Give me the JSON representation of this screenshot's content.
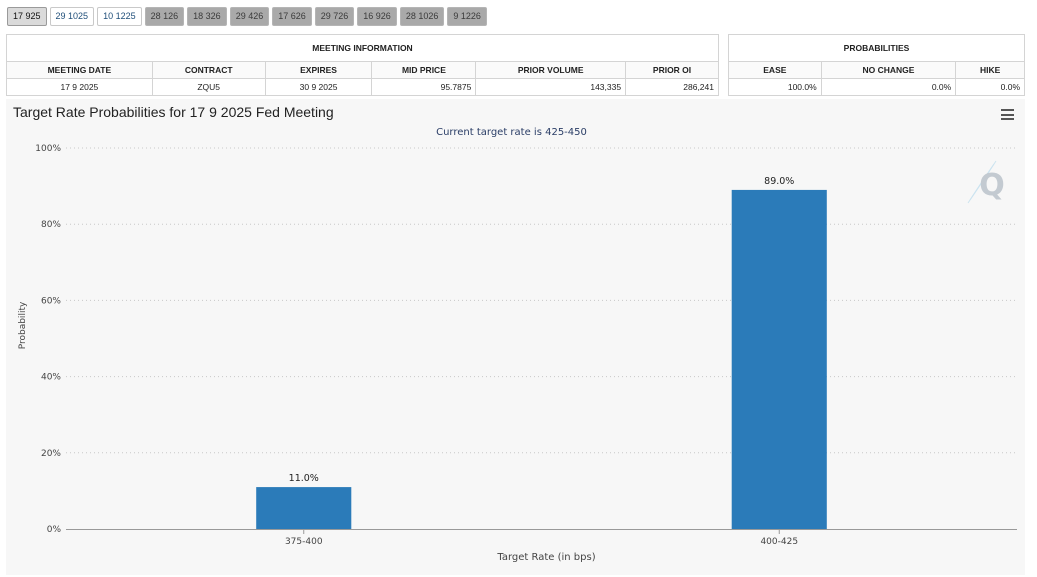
{
  "tabs": [
    {
      "label": "17 925",
      "state": "active"
    },
    {
      "label": "29 1025",
      "state": "light"
    },
    {
      "label": "10 1225",
      "state": "light"
    },
    {
      "label": "28 126",
      "state": "dark"
    },
    {
      "label": "18 326",
      "state": "dark"
    },
    {
      "label": "29 426",
      "state": "dark"
    },
    {
      "label": "17 626",
      "state": "dark"
    },
    {
      "label": "29 726",
      "state": "dark"
    },
    {
      "label": "16 926",
      "state": "dark"
    },
    {
      "label": "28 1026",
      "state": "dark"
    },
    {
      "label": "9 1226",
      "state": "dark"
    }
  ],
  "meeting_info": {
    "heading": "MEETING INFORMATION",
    "columns": [
      "MEETING DATE",
      "CONTRACT",
      "EXPIRES",
      "MID PRICE",
      "PRIOR VOLUME",
      "PRIOR OI"
    ],
    "row": [
      "17 9 2025",
      "ZQU5",
      "30 9 2025",
      "95.7875",
      "143,335",
      "286,241"
    ]
  },
  "probabilities": {
    "heading": "PROBABILITIES",
    "columns": [
      "EASE",
      "NO CHANGE",
      "HIKE"
    ],
    "row": [
      "100.0%",
      "0.0%",
      "0.0%"
    ]
  },
  "chart": {
    "title": "Target Rate Probabilities for 17 9 2025 Fed Meeting",
    "subtitle": "Current target rate is 425-450",
    "bar_color": "#2b7bb9",
    "watermark_icon": "q-logo-icon"
  },
  "chart_data": {
    "type": "bar",
    "title": "Target Rate Probabilities for 17 9 2025 Fed Meeting",
    "subtitle": "Current target rate is 425-450",
    "categories": [
      "375-400",
      "400-425"
    ],
    "values": [
      11.0,
      89.0
    ],
    "data_labels": [
      "11.0%",
      "89.0%"
    ],
    "xlabel": "Target Rate (in bps)",
    "ylabel": "Probability",
    "ylim": [
      0,
      100
    ],
    "yticks": [
      "0%",
      "20%",
      "40%",
      "60%",
      "80%",
      "100%"
    ],
    "grid": true,
    "legend": "none"
  }
}
